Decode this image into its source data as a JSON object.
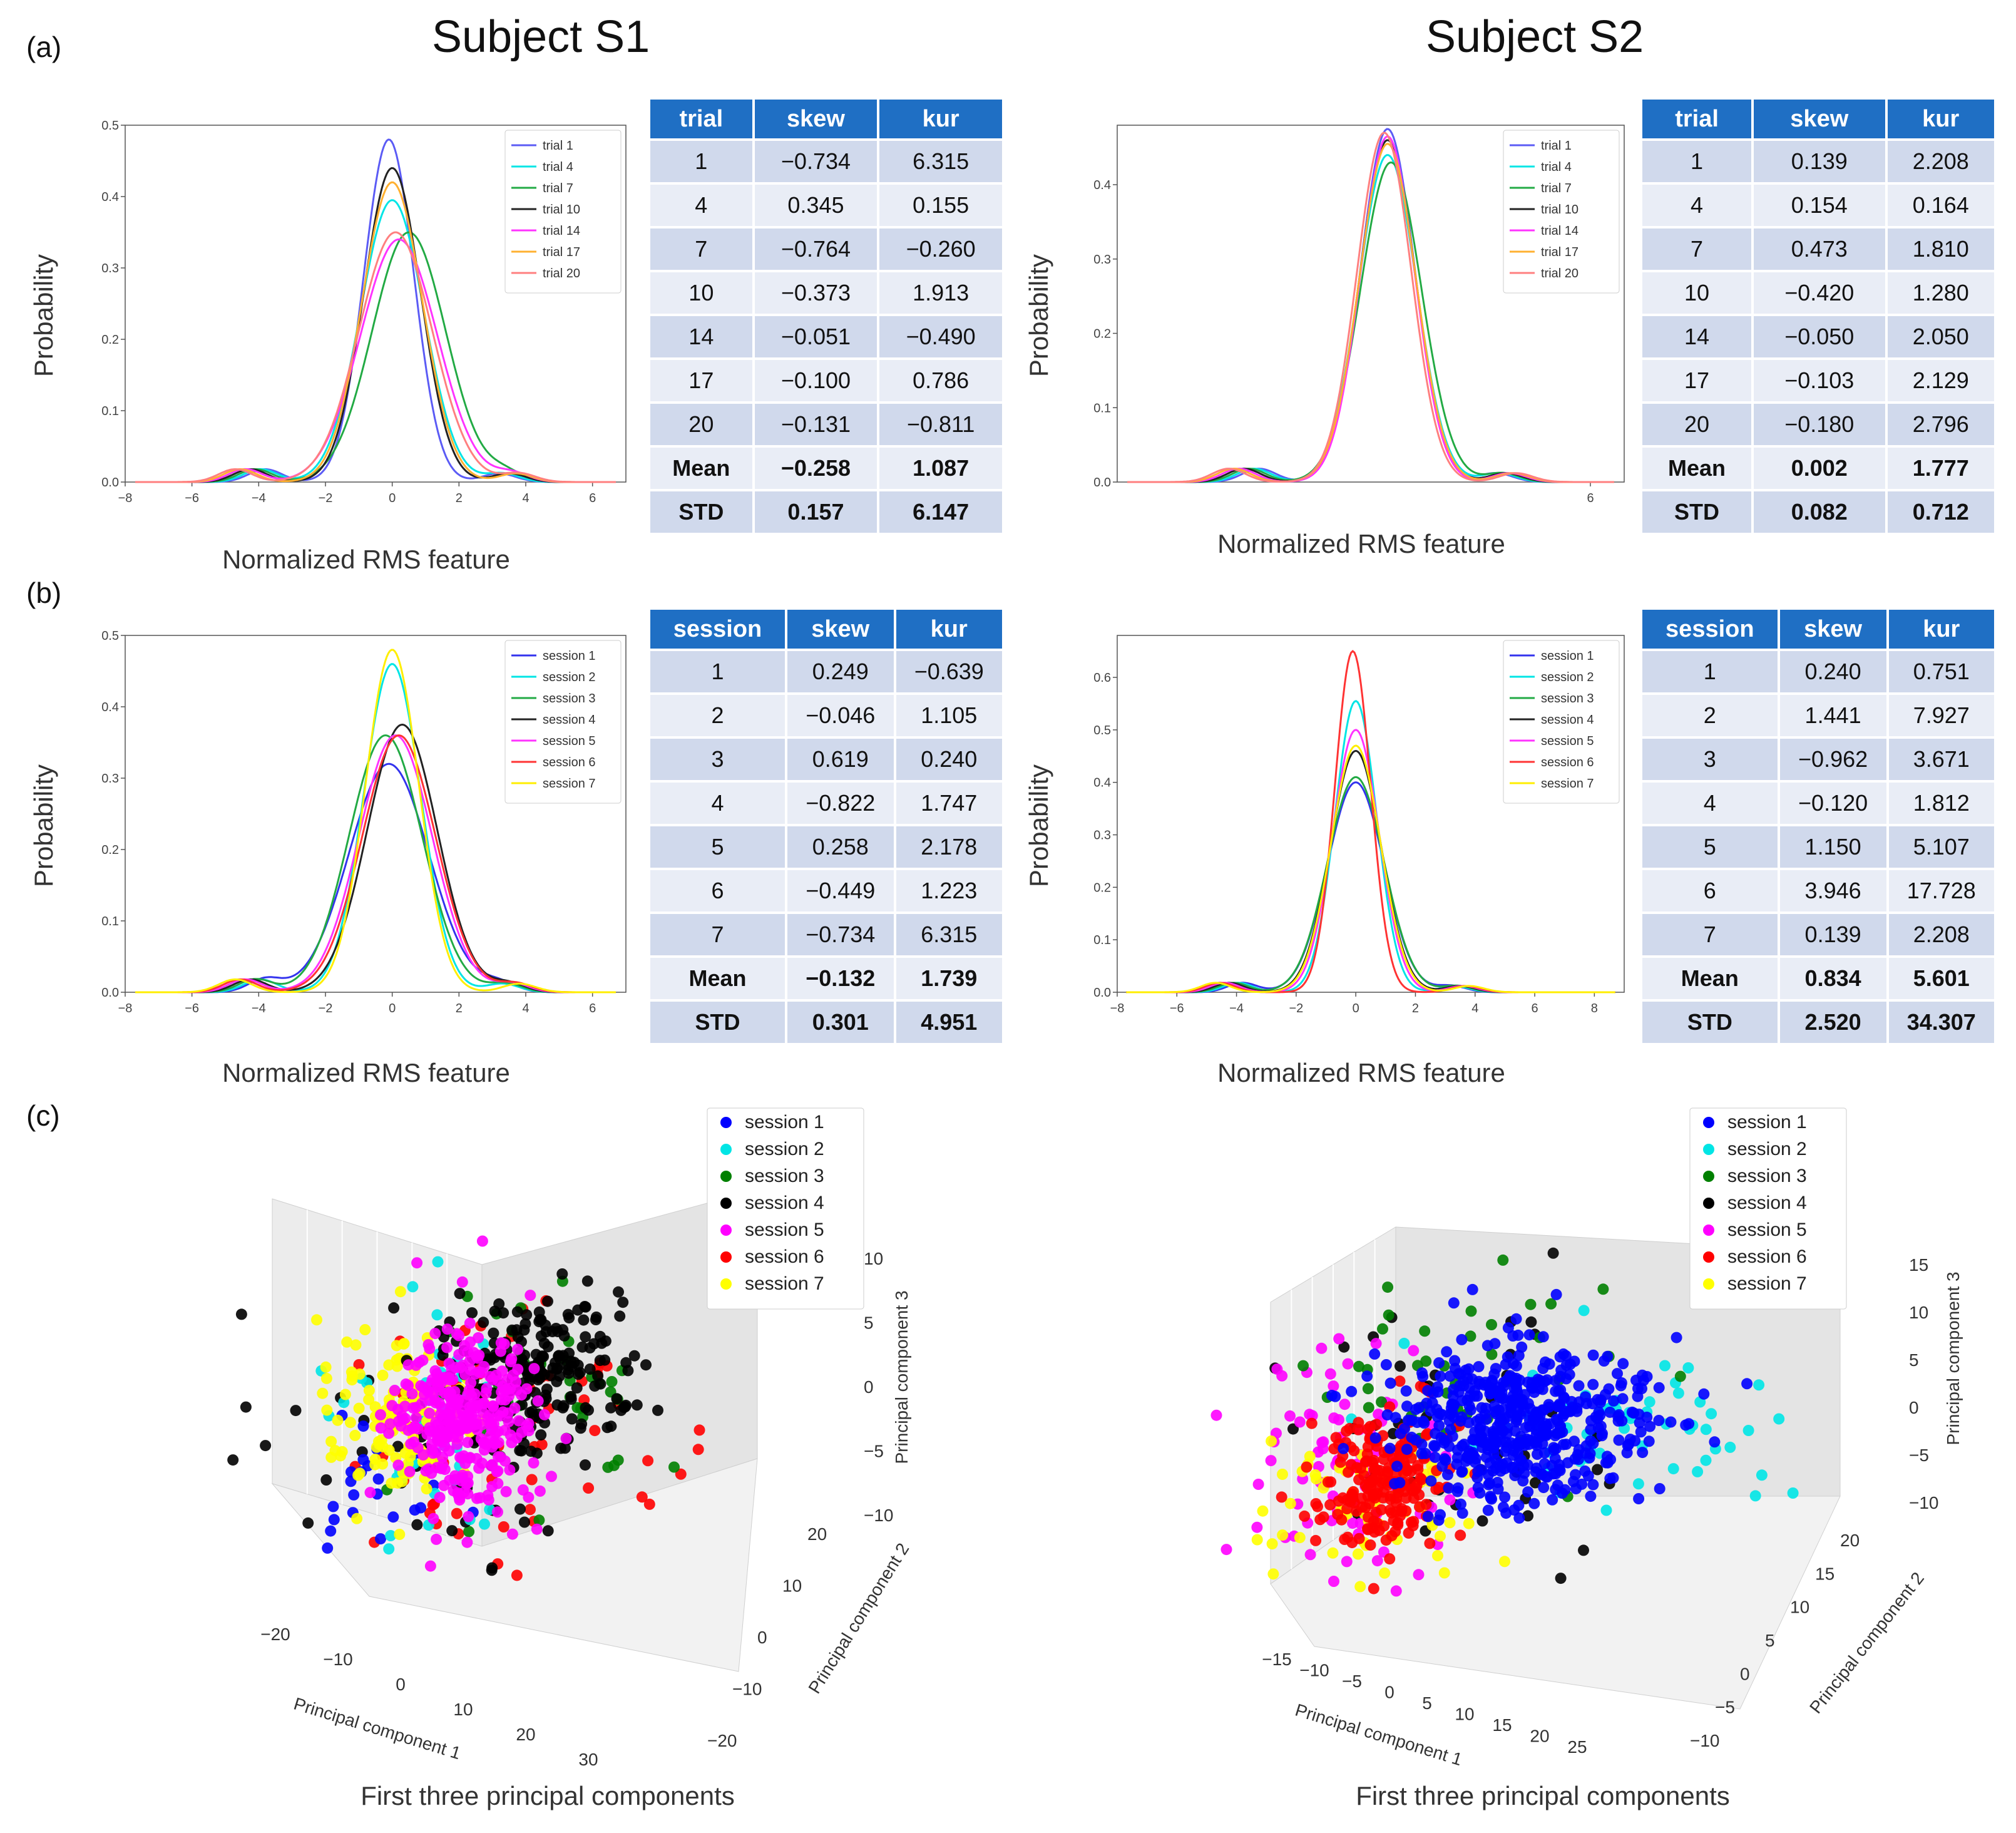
{
  "titles": {
    "s1": "Subject S1",
    "s2": "Subject S2"
  },
  "panel_labels": {
    "a": "(a)",
    "b": "(b)",
    "c": "(c)"
  },
  "labels": {
    "xlabel": "Normalized RMS feature",
    "ylabel": "Probability",
    "pca_caption": "First three principal components",
    "pc1": "Principal component 1",
    "pc2": "Principal component 2",
    "pc3": "Principal component 3"
  },
  "colors": {
    "table_header": "#1f6fc4",
    "table_dark": "#d0d9ec",
    "table_light": "#e9edf6",
    "trial_series": [
      "#5b5bf5",
      "#00e5e5",
      "#22aa44",
      "#222222",
      "#ff33ff",
      "#ffb030",
      "#ff7f7f"
    ],
    "session_series": [
      "#3333ee",
      "#00e5e5",
      "#22aa44",
      "#222222",
      "#ff33ff",
      "#ff3333",
      "#ffee00"
    ],
    "pca_series": [
      "#0000ff",
      "#00e5e5",
      "#008000",
      "#000000",
      "#ff00ff",
      "#ff0000",
      "#ffff00"
    ]
  },
  "tables": {
    "a_s1": {
      "headers": [
        "trial",
        "skew",
        "kur"
      ],
      "rows": [
        [
          "1",
          "−0.734",
          "6.315"
        ],
        [
          "4",
          "0.345",
          "0.155"
        ],
        [
          "7",
          "−0.764",
          "−0.260"
        ],
        [
          "10",
          "−0.373",
          "1.913"
        ],
        [
          "14",
          "−0.051",
          "−0.490"
        ],
        [
          "17",
          "−0.100",
          "0.786"
        ],
        [
          "20",
          "−0.131",
          "−0.811"
        ],
        [
          "Mean",
          "−0.258",
          "1.087"
        ],
        [
          "STD",
          "0.157",
          "6.147"
        ]
      ]
    },
    "a_s2": {
      "headers": [
        "trial",
        "skew",
        "kur"
      ],
      "rows": [
        [
          "1",
          "0.139",
          "2.208"
        ],
        [
          "4",
          "0.154",
          "0.164"
        ],
        [
          "7",
          "0.473",
          "1.810"
        ],
        [
          "10",
          "−0.420",
          "1.280"
        ],
        [
          "14",
          "−0.050",
          "2.050"
        ],
        [
          "17",
          "−0.103",
          "2.129"
        ],
        [
          "20",
          "−0.180",
          "2.796"
        ],
        [
          "Mean",
          "0.002",
          "1.777"
        ],
        [
          "STD",
          "0.082",
          "0.712"
        ]
      ]
    },
    "b_s1": {
      "headers": [
        "session",
        "skew",
        "kur"
      ],
      "rows": [
        [
          "1",
          "0.249",
          "−0.639"
        ],
        [
          "2",
          "−0.046",
          "1.105"
        ],
        [
          "3",
          "0.619",
          "0.240"
        ],
        [
          "4",
          "−0.822",
          "1.747"
        ],
        [
          "5",
          "0.258",
          "2.178"
        ],
        [
          "6",
          "−0.449",
          "1.223"
        ],
        [
          "7",
          "−0.734",
          "6.315"
        ],
        [
          "Mean",
          "−0.132",
          "1.739"
        ],
        [
          "STD",
          "0.301",
          "4.951"
        ]
      ]
    },
    "b_s2": {
      "headers": [
        "session",
        "skew",
        "kur"
      ],
      "rows": [
        [
          "1",
          "0.240",
          "0.751"
        ],
        [
          "2",
          "1.441",
          "7.927"
        ],
        [
          "3",
          "−0.962",
          "3.671"
        ],
        [
          "4",
          "−0.120",
          "1.812"
        ],
        [
          "5",
          "1.150",
          "5.107"
        ],
        [
          "6",
          "3.946",
          "17.728"
        ],
        [
          "7",
          "0.139",
          "2.208"
        ],
        [
          "Mean",
          "0.834",
          "5.601"
        ],
        [
          "STD",
          "2.520",
          "34.307"
        ]
      ]
    }
  },
  "chart_data": [
    {
      "id": "a_s1",
      "type": "line",
      "title": "",
      "xlabel": "Normalized RMS feature",
      "ylabel": "Probability",
      "xlim": [
        -8,
        7
      ],
      "ylim": [
        0,
        0.5
      ],
      "xticks": [
        -8,
        -6,
        -4,
        -2,
        0,
        2,
        4,
        6
      ],
      "yticks": [
        0.0,
        0.1,
        0.2,
        0.3,
        0.4,
        0.5
      ],
      "legend": [
        "trial 1",
        "trial 4",
        "trial 7",
        "trial 10",
        "trial 14",
        "trial 17",
        "trial 20"
      ],
      "series": [
        {
          "name": "trial 1",
          "peak": 0.48,
          "center": -0.1,
          "width": 0.75
        },
        {
          "name": "trial 4",
          "peak": 0.395,
          "center": 0.0,
          "width": 0.95
        },
        {
          "name": "trial 7",
          "peak": 0.35,
          "center": 0.5,
          "width": 1.1
        },
        {
          "name": "trial 10",
          "peak": 0.44,
          "center": 0.0,
          "width": 0.85
        },
        {
          "name": "trial 14",
          "peak": 0.34,
          "center": 0.2,
          "width": 1.15
        },
        {
          "name": "trial 17",
          "peak": 0.42,
          "center": 0.0,
          "width": 0.9
        },
        {
          "name": "trial 20",
          "peak": 0.35,
          "center": 0.1,
          "width": 1.1
        }
      ]
    },
    {
      "id": "a_s2",
      "type": "line",
      "title": "",
      "xlabel": "Normalized RMS feature",
      "ylabel": "Probability",
      "xlim": [
        -8,
        7
      ],
      "ylim": [
        0,
        0.48
      ],
      "xticks": [
        6
      ],
      "yticks": [
        0.0,
        0.1,
        0.2,
        0.3,
        0.4
      ],
      "legend": [
        "trial 1",
        "trial 4",
        "trial 7",
        "trial 10",
        "trial 14",
        "trial 17",
        "trial 20"
      ],
      "series": [
        {
          "name": "trial 1",
          "peak": 0.475,
          "center": 0.0,
          "width": 0.8
        },
        {
          "name": "trial 4",
          "peak": 0.44,
          "center": 0.0,
          "width": 0.85
        },
        {
          "name": "trial 7",
          "peak": 0.43,
          "center": 0.1,
          "width": 0.9
        },
        {
          "name": "trial 10",
          "peak": 0.46,
          "center": 0.0,
          "width": 0.82
        },
        {
          "name": "trial 14",
          "peak": 0.465,
          "center": 0.0,
          "width": 0.8
        },
        {
          "name": "trial 17",
          "peak": 0.455,
          "center": 0.0,
          "width": 0.83
        },
        {
          "name": "trial 20",
          "peak": 0.47,
          "center": -0.1,
          "width": 0.8
        }
      ]
    },
    {
      "id": "b_s1",
      "type": "line",
      "title": "",
      "xlabel": "Normalized RMS feature",
      "ylabel": "Probability",
      "xlim": [
        -8,
        7
      ],
      "ylim": [
        0,
        0.5
      ],
      "xticks": [
        -8,
        -6,
        -4,
        -2,
        0,
        2,
        4,
        6
      ],
      "yticks": [
        0.0,
        0.1,
        0.2,
        0.3,
        0.4,
        0.5
      ],
      "legend": [
        "session 1",
        "session 2",
        "session 3",
        "session 4",
        "session 5",
        "session 6",
        "session 7"
      ],
      "series": [
        {
          "name": "session 1",
          "peak": 0.32,
          "center": -0.1,
          "width": 1.2
        },
        {
          "name": "session 2",
          "peak": 0.46,
          "center": 0.0,
          "width": 0.85
        },
        {
          "name": "session 3",
          "peak": 0.36,
          "center": -0.2,
          "width": 1.1
        },
        {
          "name": "session 4",
          "peak": 0.375,
          "center": 0.3,
          "width": 1.05
        },
        {
          "name": "session 5",
          "peak": 0.36,
          "center": 0.1,
          "width": 1.1
        },
        {
          "name": "session 6",
          "peak": 0.36,
          "center": 0.2,
          "width": 1.1
        },
        {
          "name": "session 7",
          "peak": 0.48,
          "center": 0.0,
          "width": 0.8
        }
      ]
    },
    {
      "id": "b_s2",
      "type": "line",
      "title": "",
      "xlabel": "Normalized RMS feature",
      "ylabel": "Probability",
      "xlim": [
        -8,
        9
      ],
      "ylim": [
        0,
        0.68
      ],
      "xticks": [
        -8,
        -6,
        -4,
        -2,
        0,
        2,
        4,
        6,
        8
      ],
      "yticks": [
        0.0,
        0.1,
        0.2,
        0.3,
        0.4,
        0.5,
        0.6
      ],
      "legend": [
        "session 1",
        "session 2",
        "session 3",
        "session 4",
        "session 5",
        "session 6",
        "session 7"
      ],
      "series": [
        {
          "name": "session 1",
          "peak": 0.4,
          "center": 0.0,
          "width": 0.95
        },
        {
          "name": "session 2",
          "peak": 0.555,
          "center": 0.0,
          "width": 0.7
        },
        {
          "name": "session 3",
          "peak": 0.41,
          "center": 0.0,
          "width": 0.95
        },
        {
          "name": "session 4",
          "peak": 0.46,
          "center": 0.0,
          "width": 0.85
        },
        {
          "name": "session 5",
          "peak": 0.5,
          "center": 0.0,
          "width": 0.78
        },
        {
          "name": "session 6",
          "peak": 0.65,
          "center": -0.1,
          "width": 0.6
        },
        {
          "name": "session 7",
          "peak": 0.47,
          "center": 0.0,
          "width": 0.83
        }
      ]
    },
    {
      "id": "c_s1",
      "type": "scatter",
      "title": "",
      "xlabel": "Principal component 1",
      "ylabel": "Principal component 2",
      "zlabel": "Principal component 3",
      "xticks": [
        -20,
        -10,
        0,
        10,
        20,
        30
      ],
      "yticks": [
        -20,
        -10,
        0,
        10,
        20
      ],
      "zticks": [
        -10,
        -5,
        0,
        5,
        10
      ],
      "legend": [
        "session 1",
        "session 2",
        "session 3",
        "session 4",
        "session 5",
        "session 6",
        "session 7"
      ]
    },
    {
      "id": "c_s2",
      "type": "scatter",
      "title": "",
      "xlabel": "Principal component 1",
      "ylabel": "Principal component 2",
      "zlabel": "Principal component 3",
      "xticks": [
        -15,
        -10,
        -5,
        0,
        5,
        10,
        15,
        20,
        25
      ],
      "yticks": [
        -10,
        -5,
        0,
        5,
        10,
        15,
        20
      ],
      "zticks": [
        -10,
        -5,
        0,
        5,
        10,
        15
      ],
      "legend": [
        "session 1",
        "session 2",
        "session 3",
        "session 4",
        "session 5",
        "session 6",
        "session 7"
      ]
    }
  ]
}
